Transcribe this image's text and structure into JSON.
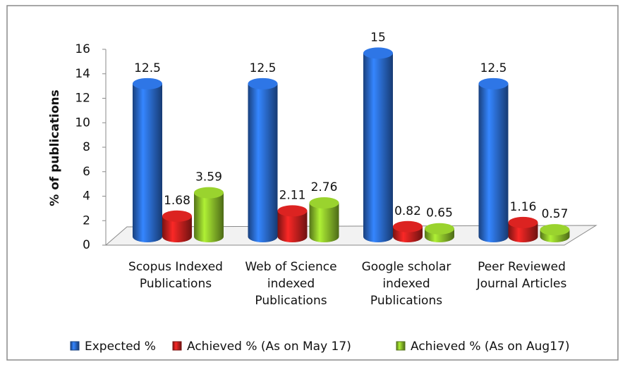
{
  "chart_data": {
    "type": "bar3d",
    "y_label": "% of publications",
    "categories": [
      "Scopus Indexed Publications",
      "Web of Science indexed Publications",
      "Google scholar indexed Publications",
      "Peer Reviewed Journal Articles"
    ],
    "series": [
      {
        "name": "Expected %",
        "color": "#2a6bd1",
        "values": [
          12.5,
          12.5,
          15,
          12.5
        ]
      },
      {
        "name": "Achieved % (As on May 17)",
        "color": "#c8201e",
        "values": [
          1.68,
          2.11,
          0.82,
          1.16
        ]
      },
      {
        "name": "Achieved % (As on Aug17)",
        "color": "#8cc02a",
        "values": [
          3.59,
          2.76,
          0.65,
          0.57
        ]
      }
    ],
    "ylim": [
      0,
      16
    ],
    "yticks": [
      0,
      2,
      4,
      6,
      8,
      10,
      12,
      14,
      16
    ]
  }
}
